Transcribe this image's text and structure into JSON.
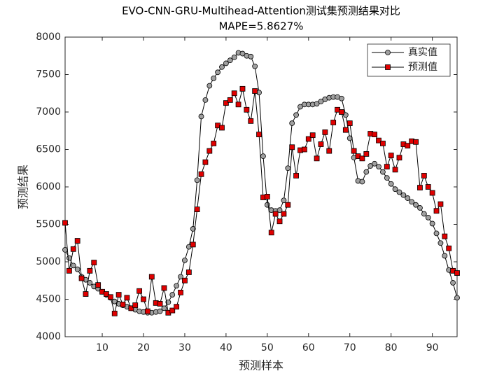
{
  "chart_data": {
    "type": "line",
    "title": "EVO-CNN-GRU-Multihead-Attention测试集预测结果对比",
    "subtitle": "MAPE=5.8627%",
    "xlabel": "预测样本",
    "ylabel": "预测结果",
    "x": [
      1,
      2,
      3,
      4,
      5,
      6,
      7,
      8,
      9,
      10,
      11,
      12,
      13,
      14,
      15,
      16,
      17,
      18,
      19,
      20,
      21,
      22,
      23,
      24,
      25,
      26,
      27,
      28,
      29,
      30,
      31,
      32,
      33,
      34,
      35,
      36,
      37,
      38,
      39,
      40,
      41,
      42,
      43,
      44,
      45,
      46,
      47,
      48,
      49,
      50,
      51,
      52,
      53,
      54,
      55,
      56,
      57,
      58,
      59,
      60,
      61,
      62,
      63,
      64,
      65,
      66,
      67,
      68,
      69,
      70,
      71,
      72,
      73,
      74,
      75,
      76,
      77,
      78,
      79,
      80,
      81,
      82,
      83,
      84,
      85,
      86,
      87,
      88,
      89,
      90,
      91,
      92,
      93,
      94,
      95,
      96
    ],
    "series": [
      {
        "name": "真实值",
        "color": "#000000",
        "marker": "circle",
        "marker_fill": "#a0a0a0",
        "values": [
          5160,
          5050,
          4950,
          4900,
          4800,
          4760,
          4720,
          4670,
          4640,
          4600,
          4560,
          4520,
          4470,
          4440,
          4420,
          4400,
          4380,
          4360,
          4340,
          4330,
          4320,
          4320,
          4330,
          4340,
          4380,
          4460,
          4560,
          4680,
          4800,
          5020,
          5200,
          5440,
          6090,
          6940,
          7160,
          7350,
          7450,
          7530,
          7600,
          7650,
          7690,
          7730,
          7790,
          7780,
          7750,
          7740,
          7610,
          7260,
          6410,
          5760,
          5690,
          5680,
          5690,
          5820,
          6250,
          6850,
          6960,
          7070,
          7100,
          7100,
          7100,
          7110,
          7140,
          7170,
          7190,
          7200,
          7200,
          7180,
          6960,
          6650,
          6390,
          6080,
          6070,
          6200,
          6280,
          6310,
          6270,
          6200,
          6120,
          6040,
          5970,
          5930,
          5890,
          5850,
          5800,
          5760,
          5720,
          5640,
          5590,
          5510,
          5380,
          5250,
          5080,
          4890,
          4720,
          4520
        ]
      },
      {
        "name": "预测值",
        "color": "#000000",
        "marker": "square",
        "marker_fill": "#e00000",
        "values": [
          5520,
          4880,
          5170,
          5280,
          4780,
          4570,
          4880,
          4990,
          4690,
          4600,
          4570,
          4530,
          4310,
          4560,
          4430,
          4520,
          4380,
          4420,
          4610,
          4500,
          4340,
          4800,
          4450,
          4440,
          4650,
          4320,
          4350,
          4400,
          4590,
          4750,
          4860,
          5230,
          5700,
          6170,
          6330,
          6480,
          6580,
          6820,
          6790,
          7120,
          7160,
          7250,
          7100,
          7310,
          7030,
          6880,
          7280,
          6700,
          5860,
          5870,
          5390,
          5640,
          5540,
          5640,
          5760,
          6530,
          6150,
          6490,
          6500,
          6640,
          6690,
          6380,
          6570,
          6730,
          6480,
          6860,
          7030,
          7000,
          6760,
          6850,
          6480,
          6410,
          6380,
          6440,
          6710,
          6700,
          6620,
          6580,
          6270,
          6420,
          6230,
          6390,
          6570,
          6550,
          6610,
          6600,
          5990,
          6150,
          6000,
          5920,
          5680,
          5770,
          5340,
          5180,
          4880,
          4850
        ]
      }
    ],
    "xlim": [
      1,
      96
    ],
    "xticks": [
      10,
      20,
      30,
      40,
      50,
      60,
      70,
      80,
      90
    ],
    "ylim": [
      4000,
      8000
    ],
    "yticks": [
      4000,
      4500,
      5000,
      5500,
      6000,
      6500,
      7000,
      7500,
      8000
    ],
    "legend": "northeast",
    "grid": false
  }
}
